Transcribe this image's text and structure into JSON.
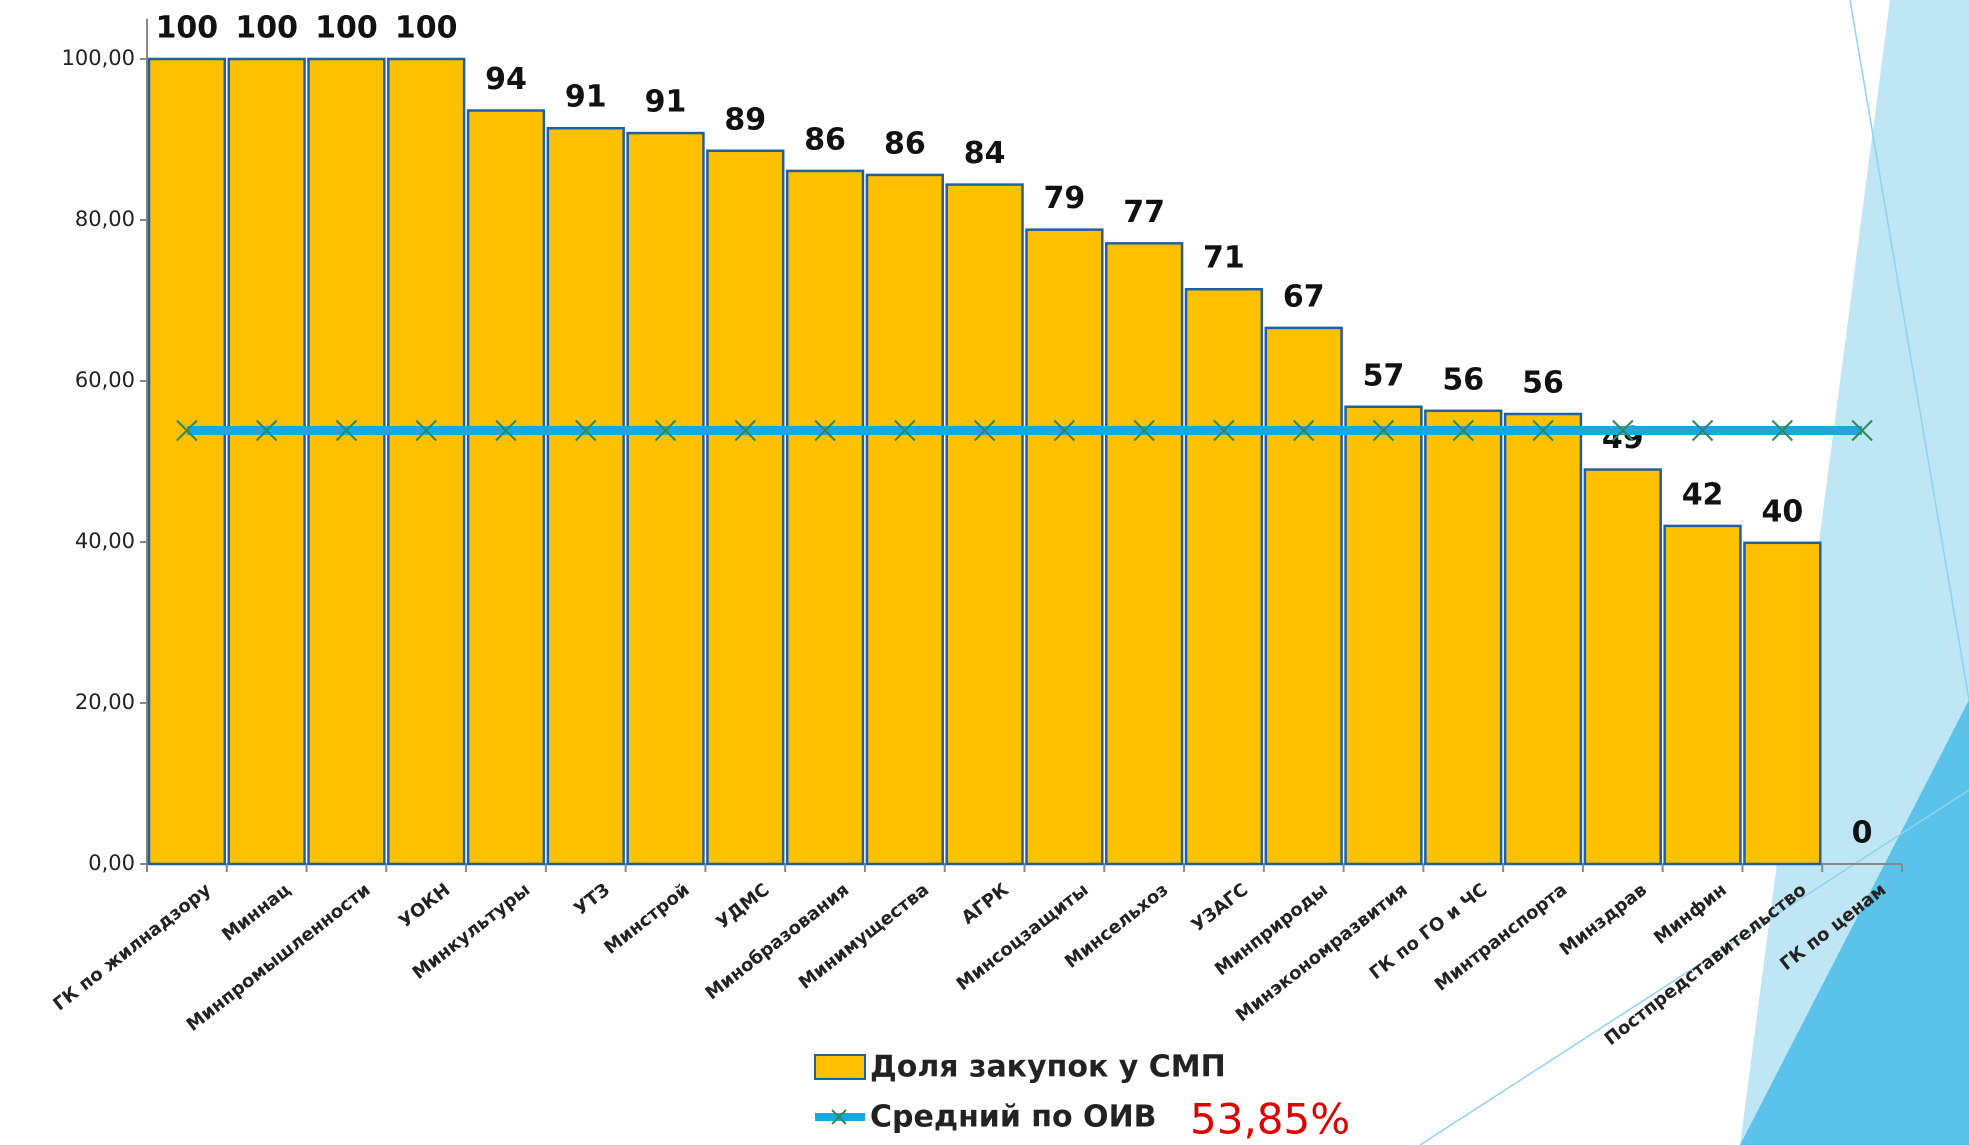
{
  "chart_data": {
    "type": "bar",
    "categories": [
      "ГК по жилнадзору",
      "Миннац",
      "Минпромышленности",
      "УОКН",
      "Минкультуры",
      "УТЗ",
      "Минстрой",
      "УДМС",
      "Минобразования",
      "Минимущества",
      "АГРК",
      "Минсоцзащиты",
      "Минсельхоз",
      "УЗАГС",
      "Минприроды",
      "Минэкономразвития",
      "ГК по ГО и ЧС",
      "Минтранспорта",
      "Минздрав",
      "Минфин",
      "Постпредставительство",
      "ГК по ценам"
    ],
    "series": [
      {
        "name": "Доля закупок у СМП",
        "type": "bar",
        "color": "#ffc000",
        "values": [
          100,
          100,
          100,
          100,
          93.6,
          91.4,
          90.8,
          88.6,
          86.1,
          85.6,
          84.4,
          78.8,
          77.1,
          71.4,
          66.6,
          56.8,
          56.3,
          55.9,
          49.0,
          42.0,
          39.9,
          0
        ],
        "value_labels": [
          "100",
          "100",
          "100",
          "100",
          "94",
          "91",
          "91",
          "89",
          "86",
          "86",
          "84",
          "79",
          "77",
          "71",
          "67",
          "57",
          "56",
          "56",
          "49",
          "42",
          "40",
          "0"
        ]
      },
      {
        "name": "Средний по ОИВ",
        "type": "line",
        "color": "#1aa7e0",
        "values": [
          53.85,
          53.85,
          53.85,
          53.85,
          53.85,
          53.85,
          53.85,
          53.85,
          53.85,
          53.85,
          53.85,
          53.85,
          53.85,
          53.85,
          53.85,
          53.85,
          53.85,
          53.85,
          53.85,
          53.85,
          53.85,
          53.85
        ]
      }
    ],
    "average_annotation": "53,85%",
    "ylim": [
      0,
      105
    ],
    "yticks": [
      {
        "value": 0,
        "label": "0,00"
      },
      {
        "value": 20,
        "label": "20,00"
      },
      {
        "value": 40,
        "label": "40,00"
      },
      {
        "value": 60,
        "label": "60,00"
      },
      {
        "value": 80,
        "label": "80,00"
      },
      {
        "value": 100,
        "label": "100,00"
      }
    ]
  }
}
